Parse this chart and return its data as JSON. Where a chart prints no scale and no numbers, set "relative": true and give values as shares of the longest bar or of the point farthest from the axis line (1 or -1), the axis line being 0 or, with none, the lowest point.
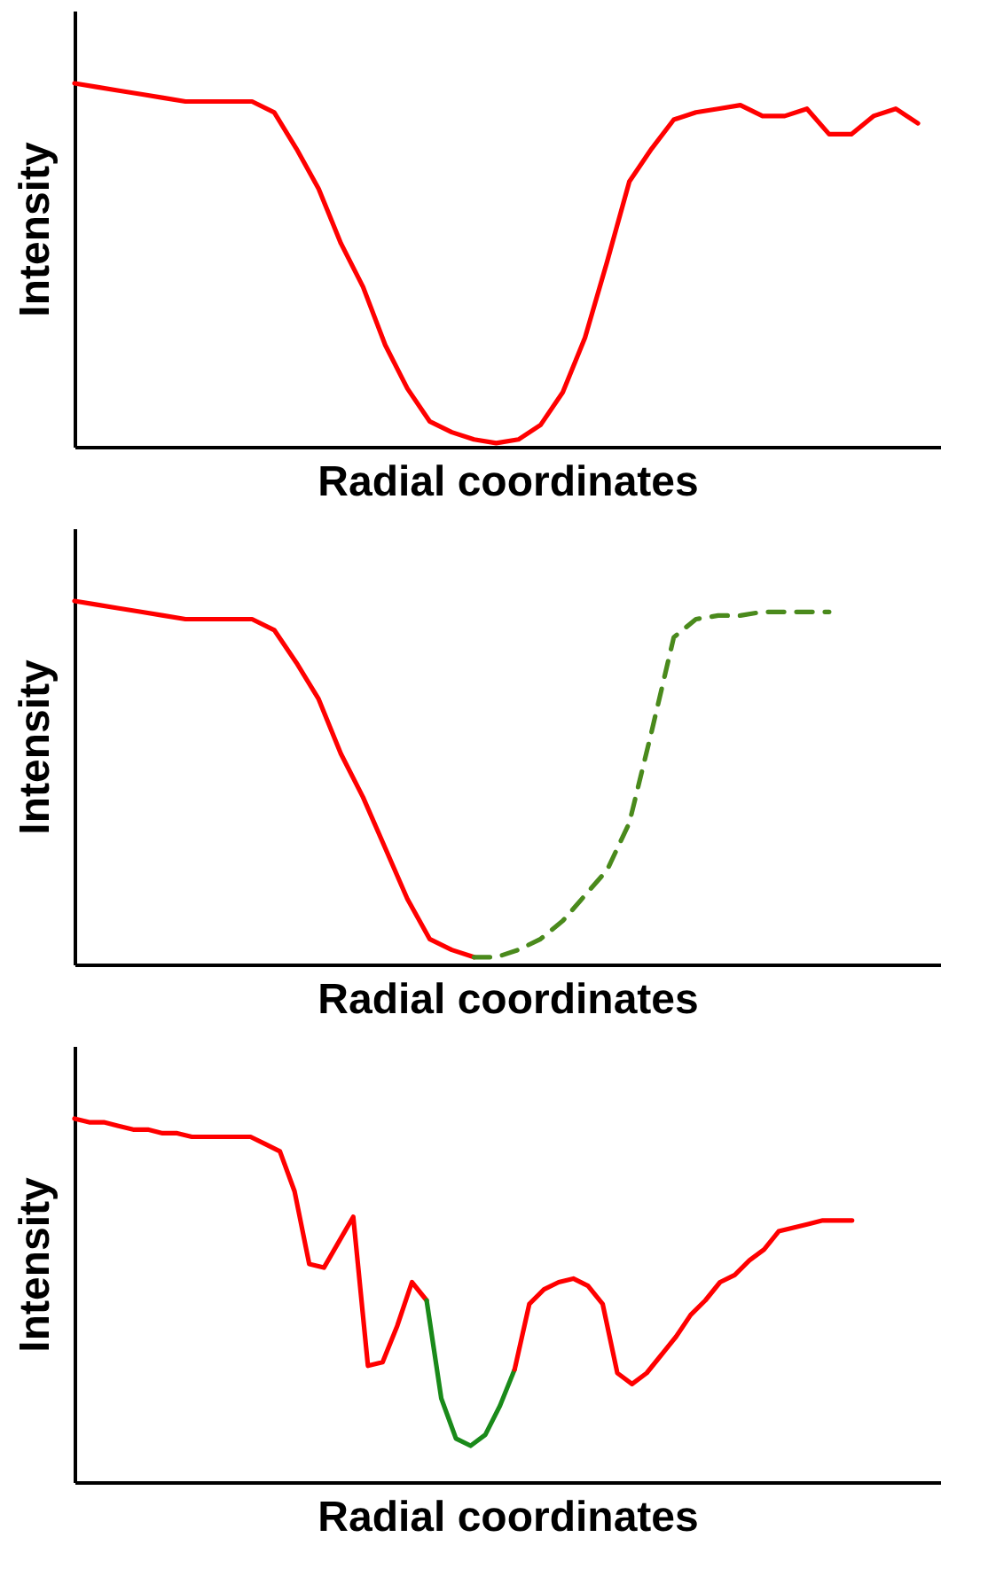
{
  "chart_data": [
    {
      "type": "line",
      "relative": true,
      "xlabel": "Radial coordinates",
      "ylabel": "Intensity",
      "categories": [
        null,
        null,
        null,
        null,
        null,
        null,
        null,
        null,
        null,
        null,
        null,
        null,
        null,
        null,
        null,
        null,
        null,
        null,
        null,
        null,
        null,
        null,
        null,
        null,
        null,
        null,
        null,
        null,
        null,
        null,
        null,
        null,
        null,
        null,
        null,
        null,
        null,
        null,
        null,
        null
      ],
      "series": [
        {
          "color": "#ff0000",
          "values": [
            1.0,
            0.99,
            0.98,
            0.97,
            0.96,
            0.95,
            0.95,
            0.95,
            0.95,
            0.92,
            0.82,
            0.71,
            0.56,
            0.44,
            0.28,
            0.16,
            0.07,
            0.04,
            0.02,
            0.01,
            0.02,
            0.06,
            0.15,
            0.3,
            0.51,
            0.73,
            0.82,
            0.9,
            0.92,
            0.93,
            0.94,
            0.91,
            0.91,
            0.93,
            0.86,
            0.86,
            0.91,
            0.93,
            0.89,
            null
          ]
        }
      ]
    },
    {
      "type": "line",
      "relative": true,
      "xlabel": "Radial coordinates",
      "ylabel": "Intensity",
      "categories": [
        null,
        null,
        null,
        null,
        null,
        null,
        null,
        null,
        null,
        null,
        null,
        null,
        null,
        null,
        null,
        null,
        null,
        null,
        null,
        null,
        null,
        null,
        null,
        null,
        null,
        null,
        null,
        null,
        null,
        null,
        null,
        null,
        null,
        null,
        null,
        null,
        null,
        null,
        null,
        null
      ],
      "series": [
        {
          "color": "#ff0000",
          "values": [
            1.0,
            0.99,
            0.98,
            0.97,
            0.96,
            0.95,
            0.95,
            0.95,
            0.95,
            0.92,
            0.83,
            0.73,
            0.58,
            0.46,
            0.32,
            0.18,
            0.07,
            0.04,
            0.02,
            null,
            null,
            null,
            null,
            null,
            null,
            null,
            null,
            null,
            null,
            null,
            null,
            null,
            null,
            null,
            null,
            null,
            null,
            null,
            null,
            null
          ]
        },
        {
          "color": "#4a8a1c",
          "line_style": "dashed",
          "values": [
            null,
            null,
            null,
            null,
            null,
            null,
            null,
            null,
            null,
            null,
            null,
            null,
            null,
            null,
            null,
            null,
            null,
            null,
            0.02,
            0.02,
            0.04,
            0.07,
            0.12,
            0.19,
            0.26,
            0.39,
            0.64,
            0.9,
            0.95,
            0.96,
            0.96,
            0.97,
            0.97,
            0.97,
            0.97,
            null,
            null,
            null,
            null,
            null
          ]
        }
      ]
    },
    {
      "type": "line",
      "relative": true,
      "xlabel": "Radial coordinates",
      "ylabel": "Intensity",
      "categories": [
        null,
        null,
        null,
        null,
        null,
        null,
        null,
        null,
        null,
        null,
        null,
        null,
        null,
        null,
        null,
        null,
        null,
        null,
        null,
        null,
        null,
        null,
        null,
        null,
        null,
        null,
        null,
        null,
        null,
        null,
        null,
        null,
        null,
        null,
        null,
        null,
        null,
        null,
        null,
        null,
        null,
        null,
        null,
        null,
        null,
        null,
        null,
        null,
        null,
        null,
        null,
        null,
        null,
        null,
        null,
        null,
        null,
        null,
        null,
        null
      ],
      "series": [
        {
          "color": "#ff0000",
          "values": [
            1.0,
            0.99,
            0.99,
            0.98,
            0.97,
            0.97,
            0.96,
            0.96,
            0.95,
            0.95,
            0.95,
            0.95,
            0.95,
            0.93,
            0.91,
            0.8,
            0.6,
            0.59,
            0.66,
            0.73,
            0.32,
            0.33,
            0.43,
            0.55,
            0.5,
            null,
            null,
            null,
            null,
            null,
            null,
            null,
            null,
            null,
            null,
            null,
            null,
            null,
            null,
            null,
            null,
            null,
            null,
            null,
            null,
            null,
            null,
            null,
            null,
            null,
            null,
            null,
            null,
            null,
            null,
            null,
            null,
            null,
            null,
            null
          ]
        },
        {
          "color": "#1a8a1a",
          "values": [
            null,
            null,
            null,
            null,
            null,
            null,
            null,
            null,
            null,
            null,
            null,
            null,
            null,
            null,
            null,
            null,
            null,
            null,
            null,
            null,
            null,
            null,
            null,
            null,
            0.5,
            0.23,
            0.12,
            0.1,
            0.13,
            0.21,
            0.31,
            null,
            null,
            null,
            null,
            null,
            null,
            null,
            null,
            null,
            null,
            null,
            null,
            null,
            null,
            null,
            null,
            null,
            null,
            null,
            null,
            null,
            null,
            null,
            null,
            null,
            null,
            null,
            null,
            null
          ]
        },
        {
          "color": "#ff0000",
          "values": [
            null,
            null,
            null,
            null,
            null,
            null,
            null,
            null,
            null,
            null,
            null,
            null,
            null,
            null,
            null,
            null,
            null,
            null,
            null,
            null,
            null,
            null,
            null,
            null,
            null,
            null,
            null,
            null,
            null,
            null,
            0.31,
            0.49,
            0.53,
            0.55,
            0.56,
            0.54,
            0.49,
            0.3,
            0.27,
            0.3,
            0.35,
            0.4,
            0.46,
            0.5,
            0.55,
            0.57,
            0.61,
            0.64,
            0.69,
            0.7,
            0.71,
            0.72,
            0.72,
            0.72,
            null,
            null,
            null,
            null,
            null,
            null
          ]
        }
      ]
    }
  ]
}
